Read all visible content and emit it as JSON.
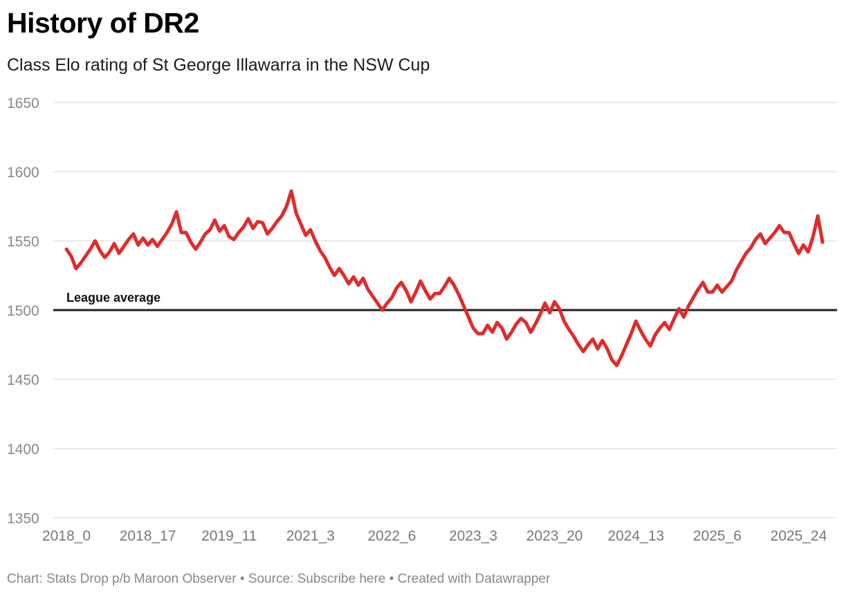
{
  "title": "History of DR2",
  "subtitle": "Class Elo rating of St George Illawarra in the NSW Cup",
  "footer": {
    "chart_credit": "Chart: Stats Drop p/b Maroon Observer",
    "separator": " • ",
    "source_label": "Source: ",
    "source_link": "Subscribe here",
    "created_with": "Created with Datawrapper"
  },
  "colors": {
    "line": "#e02b2b",
    "reference": "#222222",
    "grid": "#dddddd",
    "tick": "#888888"
  },
  "chart_data": {
    "type": "line",
    "title": "History of DR2",
    "xlabel": "",
    "ylabel": "",
    "ylim": [
      1350,
      1650
    ],
    "yticks": [
      1350,
      1400,
      1450,
      1500,
      1550,
      1600,
      1650
    ],
    "grid": true,
    "xtick_labels": [
      "2018_0",
      "2018_17",
      "2019_11",
      "2021_3",
      "2022_6",
      "2023_3",
      "2023_20",
      "2024_13",
      "2025_6",
      "2025_24"
    ],
    "xtick_index": [
      0,
      17,
      34,
      51,
      68,
      85,
      102,
      119,
      136,
      153
    ],
    "reference_line": {
      "value": 1500,
      "label": "League average"
    },
    "series": [
      {
        "name": "St George Illawarra",
        "values": [
          1544,
          1539,
          1530,
          1534,
          1539,
          1544,
          1550,
          1543,
          1538,
          1542,
          1548,
          1541,
          1546,
          1551,
          1555,
          1547,
          1552,
          1547,
          1551,
          1546,
          1551,
          1556,
          1562,
          1571,
          1556,
          1556,
          1549,
          1544,
          1549,
          1555,
          1558,
          1565,
          1557,
          1561,
          1553,
          1551,
          1556,
          1560,
          1566,
          1559,
          1564,
          1563,
          1555,
          1559,
          1564,
          1568,
          1575,
          1586,
          1570,
          1562,
          1554,
          1558,
          1550,
          1543,
          1538,
          1531,
          1525,
          1530,
          1525,
          1519,
          1524,
          1518,
          1523,
          1515,
          1510,
          1505,
          1500,
          1505,
          1509,
          1516,
          1520,
          1514,
          1506,
          1513,
          1521,
          1514,
          1508,
          1512,
          1512,
          1517,
          1523,
          1518,
          1511,
          1503,
          1495,
          1487,
          1483,
          1483,
          1489,
          1484,
          1491,
          1487,
          1479,
          1484,
          1490,
          1494,
          1491,
          1484,
          1490,
          1497,
          1505,
          1498,
          1506,
          1501,
          1492,
          1486,
          1481,
          1475,
          1470,
          1475,
          1479,
          1472,
          1478,
          1472,
          1464,
          1460,
          1467,
          1475,
          1483,
          1492,
          1485,
          1479,
          1474,
          1482,
          1487,
          1491,
          1486,
          1494,
          1501,
          1495,
          1503,
          1509,
          1515,
          1520,
          1513,
          1513,
          1518,
          1513,
          1517,
          1521,
          1529,
          1535,
          1541,
          1545,
          1551,
          1555,
          1548,
          1552,
          1556,
          1561,
          1556,
          1556,
          1548,
          1541,
          1547,
          1542,
          1553,
          1568,
          1549
        ]
      }
    ]
  }
}
